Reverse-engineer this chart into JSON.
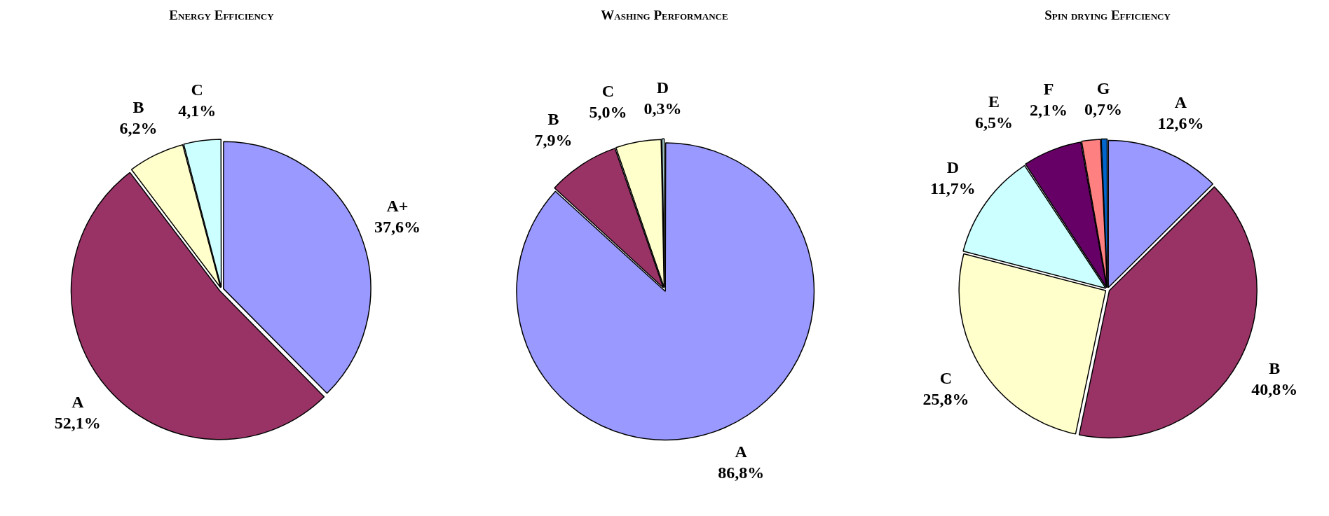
{
  "chart_data": [
    {
      "type": "pie",
      "title": "Energy Efficiency",
      "categories": [
        "A+",
        "A",
        "B",
        "C"
      ],
      "values": [
        37.6,
        52.1,
        6.2,
        4.1
      ],
      "value_labels": [
        "37,6%",
        "52,1%",
        "6,2%",
        "4,1%"
      ],
      "colors": [
        "#9999ff",
        "#993366",
        "#ffffcc",
        "#ccffff"
      ],
      "legend": false
    },
    {
      "type": "pie",
      "title": "Washing Performance",
      "categories": [
        "A",
        "B",
        "C",
        "D"
      ],
      "values": [
        86.8,
        7.9,
        5.0,
        0.3
      ],
      "value_labels": [
        "86,8%",
        "7,9%",
        "5,0%",
        "0,3%"
      ],
      "colors": [
        "#9999ff",
        "#993366",
        "#ffffcc",
        "#ccffff"
      ],
      "legend": false
    },
    {
      "type": "pie",
      "title": "Spin drying Efficiency",
      "categories": [
        "A",
        "B",
        "C",
        "D",
        "E",
        "F",
        "G"
      ],
      "values": [
        12.6,
        40.8,
        25.8,
        11.7,
        6.5,
        2.1,
        0.7
      ],
      "value_labels": [
        "12,6%",
        "40,8%",
        "25,8%",
        "11,7%",
        "6,5%",
        "2,1%",
        "0,7%"
      ],
      "colors": [
        "#9999ff",
        "#993366",
        "#ffffcc",
        "#ccffff",
        "#660066",
        "#ff8080",
        "#0066cc"
      ],
      "legend": false
    }
  ]
}
